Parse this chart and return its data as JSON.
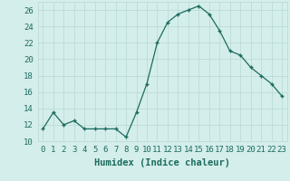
{
  "title": "",
  "xlabel": "Humidex (Indice chaleur)",
  "x": [
    0,
    1,
    2,
    3,
    4,
    5,
    6,
    7,
    8,
    9,
    10,
    11,
    12,
    13,
    14,
    15,
    16,
    17,
    18,
    19,
    20,
    21,
    22,
    23
  ],
  "y": [
    11.5,
    13.5,
    12.0,
    12.5,
    11.5,
    11.5,
    11.5,
    11.5,
    10.5,
    13.5,
    17.0,
    22.0,
    24.5,
    25.5,
    26.0,
    26.5,
    25.5,
    23.5,
    21.0,
    20.5,
    19.0,
    18.0,
    17.0,
    15.5
  ],
  "line_color": "#1c6b5e",
  "marker_color": "#1c6b5e",
  "bg_color": "#d4eeeb",
  "grid_color": "#b8d8d4",
  "tick_color": "#1c6b5e",
  "label_color": "#1c6b5e",
  "ylim": [
    10,
    27
  ],
  "yticks": [
    10,
    12,
    14,
    16,
    18,
    20,
    22,
    24,
    26
  ],
  "xtick_labels": [
    "0",
    "1",
    "2",
    "3",
    "4",
    "5",
    "6",
    "7",
    "8",
    "9",
    "10",
    "11",
    "12",
    "13",
    "14",
    "15",
    "16",
    "17",
    "18",
    "19",
    "20",
    "21",
    "22",
    "23"
  ],
  "xlabel_fontsize": 7.5,
  "tick_fontsize": 6.5
}
